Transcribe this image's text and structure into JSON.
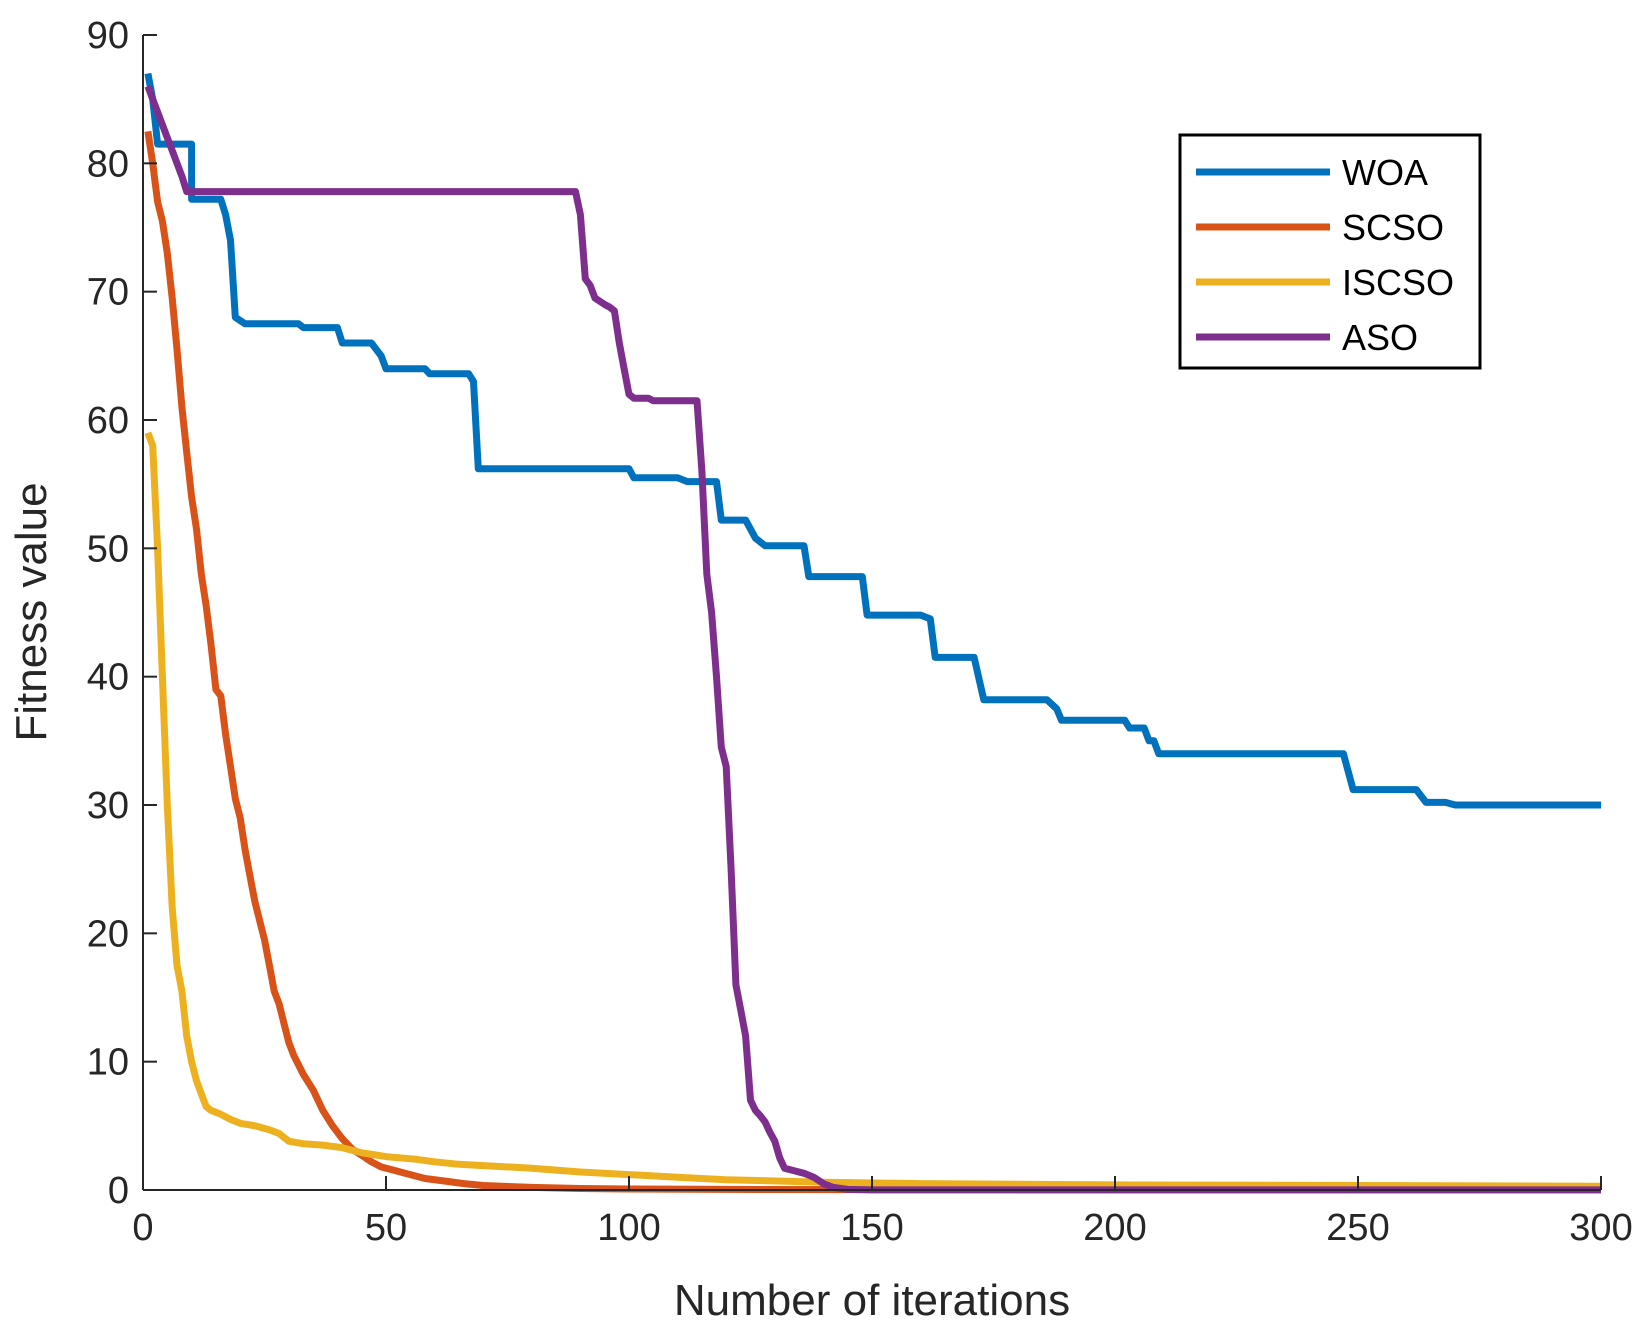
{
  "chart_data": {
    "type": "line",
    "title": "",
    "xlabel": "Number of iterations",
    "ylabel": "Fitness value",
    "xlim": [
      0,
      300
    ],
    "ylim": [
      0,
      90
    ],
    "xticks": [
      0,
      50,
      100,
      150,
      200,
      250,
      300
    ],
    "yticks": [
      0,
      10,
      20,
      30,
      40,
      50,
      60,
      70,
      80,
      90
    ],
    "grid": false,
    "legend_position": "top-right",
    "series": [
      {
        "name": "WOA",
        "color": "#0072BD",
        "points": [
          [
            1,
            87
          ],
          [
            2,
            85
          ],
          [
            3,
            81.5
          ],
          [
            10,
            81.5
          ],
          [
            10,
            77.2
          ],
          [
            16,
            77.2
          ],
          [
            17,
            76
          ],
          [
            18,
            74
          ],
          [
            19,
            68
          ],
          [
            21,
            67.5
          ],
          [
            32,
            67.5
          ],
          [
            33,
            67.2
          ],
          [
            40,
            67.2
          ],
          [
            41,
            66
          ],
          [
            47,
            66
          ],
          [
            49,
            65
          ],
          [
            50,
            64
          ],
          [
            58,
            64
          ],
          [
            59,
            63.6
          ],
          [
            67,
            63.6
          ],
          [
            68,
            63
          ],
          [
            69,
            56.2
          ],
          [
            100,
            56.2
          ],
          [
            101,
            55.5
          ],
          [
            110,
            55.5
          ],
          [
            112,
            55.2
          ],
          [
            118,
            55.2
          ],
          [
            119,
            52.2
          ],
          [
            124,
            52.2
          ],
          [
            126,
            50.8
          ],
          [
            128,
            50.2
          ],
          [
            136,
            50.2
          ],
          [
            137,
            47.8
          ],
          [
            148,
            47.8
          ],
          [
            149,
            44.8
          ],
          [
            160,
            44.8
          ],
          [
            162,
            44.5
          ],
          [
            163,
            41.5
          ],
          [
            171,
            41.5
          ],
          [
            173,
            38.2
          ],
          [
            186,
            38.2
          ],
          [
            188,
            37.5
          ],
          [
            189,
            36.6
          ],
          [
            202,
            36.6
          ],
          [
            203,
            36
          ],
          [
            206,
            36
          ],
          [
            207,
            35
          ],
          [
            208,
            35
          ],
          [
            209,
            34
          ],
          [
            247,
            34
          ],
          [
            249,
            31.2
          ],
          [
            262,
            31.2
          ],
          [
            264,
            30.2
          ],
          [
            268,
            30.2
          ],
          [
            270,
            30
          ],
          [
            300,
            30
          ]
        ]
      },
      {
        "name": "SCSO",
        "color": "#D95319",
        "points": [
          [
            1,
            82.5
          ],
          [
            2,
            80
          ],
          [
            3,
            77
          ],
          [
            4,
            75.5
          ],
          [
            5,
            73
          ],
          [
            6,
            69.5
          ],
          [
            7,
            65.5
          ],
          [
            8,
            61
          ],
          [
            9,
            57.5
          ],
          [
            10,
            54
          ],
          [
            11,
            51.5
          ],
          [
            12,
            48
          ],
          [
            13,
            45.5
          ],
          [
            14,
            42.5
          ],
          [
            15,
            39
          ],
          [
            16,
            38.5
          ],
          [
            17,
            35.5
          ],
          [
            18,
            33
          ],
          [
            19,
            30.5
          ],
          [
            20,
            29
          ],
          [
            21,
            26.5
          ],
          [
            22,
            24.5
          ],
          [
            23,
            22.5
          ],
          [
            24,
            21
          ],
          [
            25,
            19.5
          ],
          [
            26,
            17.5
          ],
          [
            27,
            15.5
          ],
          [
            28,
            14.5
          ],
          [
            29,
            13
          ],
          [
            30,
            11.5
          ],
          [
            31,
            10.5
          ],
          [
            33,
            9
          ],
          [
            35,
            7.8
          ],
          [
            37,
            6.2
          ],
          [
            39,
            5
          ],
          [
            41,
            4
          ],
          [
            43,
            3.2
          ],
          [
            45,
            2.7
          ],
          [
            47,
            2.2
          ],
          [
            49,
            1.8
          ],
          [
            52,
            1.5
          ],
          [
            55,
            1.2
          ],
          [
            58,
            0.9
          ],
          [
            62,
            0.7
          ],
          [
            66,
            0.5
          ],
          [
            70,
            0.35
          ],
          [
            80,
            0.2
          ],
          [
            90,
            0.12
          ],
          [
            100,
            0.08
          ],
          [
            120,
            0.05
          ],
          [
            150,
            0.03
          ],
          [
            200,
            0.02
          ],
          [
            300,
            0.02
          ]
        ]
      },
      {
        "name": "ISCSO",
        "color": "#EDB120",
        "points": [
          [
            1,
            59
          ],
          [
            2,
            58
          ],
          [
            3,
            50
          ],
          [
            4,
            40
          ],
          [
            5,
            30
          ],
          [
            6,
            22
          ],
          [
            7,
            17.5
          ],
          [
            8,
            15.5
          ],
          [
            9,
            12
          ],
          [
            10,
            10
          ],
          [
            11,
            8.5
          ],
          [
            12,
            7.5
          ],
          [
            13,
            6.5
          ],
          [
            14,
            6.2
          ],
          [
            16,
            5.9
          ],
          [
            18,
            5.5
          ],
          [
            20,
            5.2
          ],
          [
            23,
            5
          ],
          [
            26,
            4.7
          ],
          [
            28,
            4.4
          ],
          [
            30,
            3.8
          ],
          [
            33,
            3.6
          ],
          [
            37,
            3.5
          ],
          [
            41,
            3.3
          ],
          [
            45,
            2.9
          ],
          [
            50,
            2.6
          ],
          [
            56,
            2.4
          ],
          [
            60,
            2.2
          ],
          [
            65,
            2
          ],
          [
            70,
            1.9
          ],
          [
            80,
            1.7
          ],
          [
            90,
            1.4
          ],
          [
            100,
            1.2
          ],
          [
            110,
            1
          ],
          [
            120,
            0.8
          ],
          [
            140,
            0.6
          ],
          [
            160,
            0.5
          ],
          [
            200,
            0.4
          ],
          [
            250,
            0.35
          ],
          [
            300,
            0.3
          ]
        ]
      },
      {
        "name": "ASO",
        "color": "#7E2F8E",
        "points": [
          [
            1,
            86
          ],
          [
            2,
            85
          ],
          [
            3,
            84
          ],
          [
            4,
            83
          ],
          [
            5,
            82
          ],
          [
            6,
            81
          ],
          [
            7,
            80
          ],
          [
            8,
            79
          ],
          [
            9,
            77.8
          ],
          [
            89,
            77.8
          ],
          [
            90,
            76
          ],
          [
            91,
            71
          ],
          [
            92,
            70.5
          ],
          [
            93,
            69.5
          ],
          [
            95,
            69
          ],
          [
            96,
            68.8
          ],
          [
            97,
            68.5
          ],
          [
            98,
            66
          ],
          [
            99,
            64
          ],
          [
            100,
            62
          ],
          [
            101,
            61.7
          ],
          [
            104,
            61.7
          ],
          [
            105,
            61.5
          ],
          [
            114,
            61.5
          ],
          [
            115,
            56
          ],
          [
            116,
            48
          ],
          [
            117,
            45
          ],
          [
            118,
            40
          ],
          [
            119,
            34.5
          ],
          [
            120,
            33
          ],
          [
            121,
            25
          ],
          [
            122,
            16
          ],
          [
            123,
            14
          ],
          [
            124,
            12
          ],
          [
            125,
            7
          ],
          [
            126,
            6.2
          ],
          [
            127,
            5.8
          ],
          [
            128,
            5.3
          ],
          [
            129,
            4.5
          ],
          [
            130,
            3.8
          ],
          [
            131,
            2.5
          ],
          [
            132,
            1.7
          ],
          [
            134,
            1.5
          ],
          [
            136,
            1.3
          ],
          [
            138,
            1
          ],
          [
            140,
            0.5
          ],
          [
            142,
            0.2
          ],
          [
            145,
            0.05
          ],
          [
            150,
            0.01
          ],
          [
            300,
            0.01
          ]
        ]
      }
    ]
  }
}
